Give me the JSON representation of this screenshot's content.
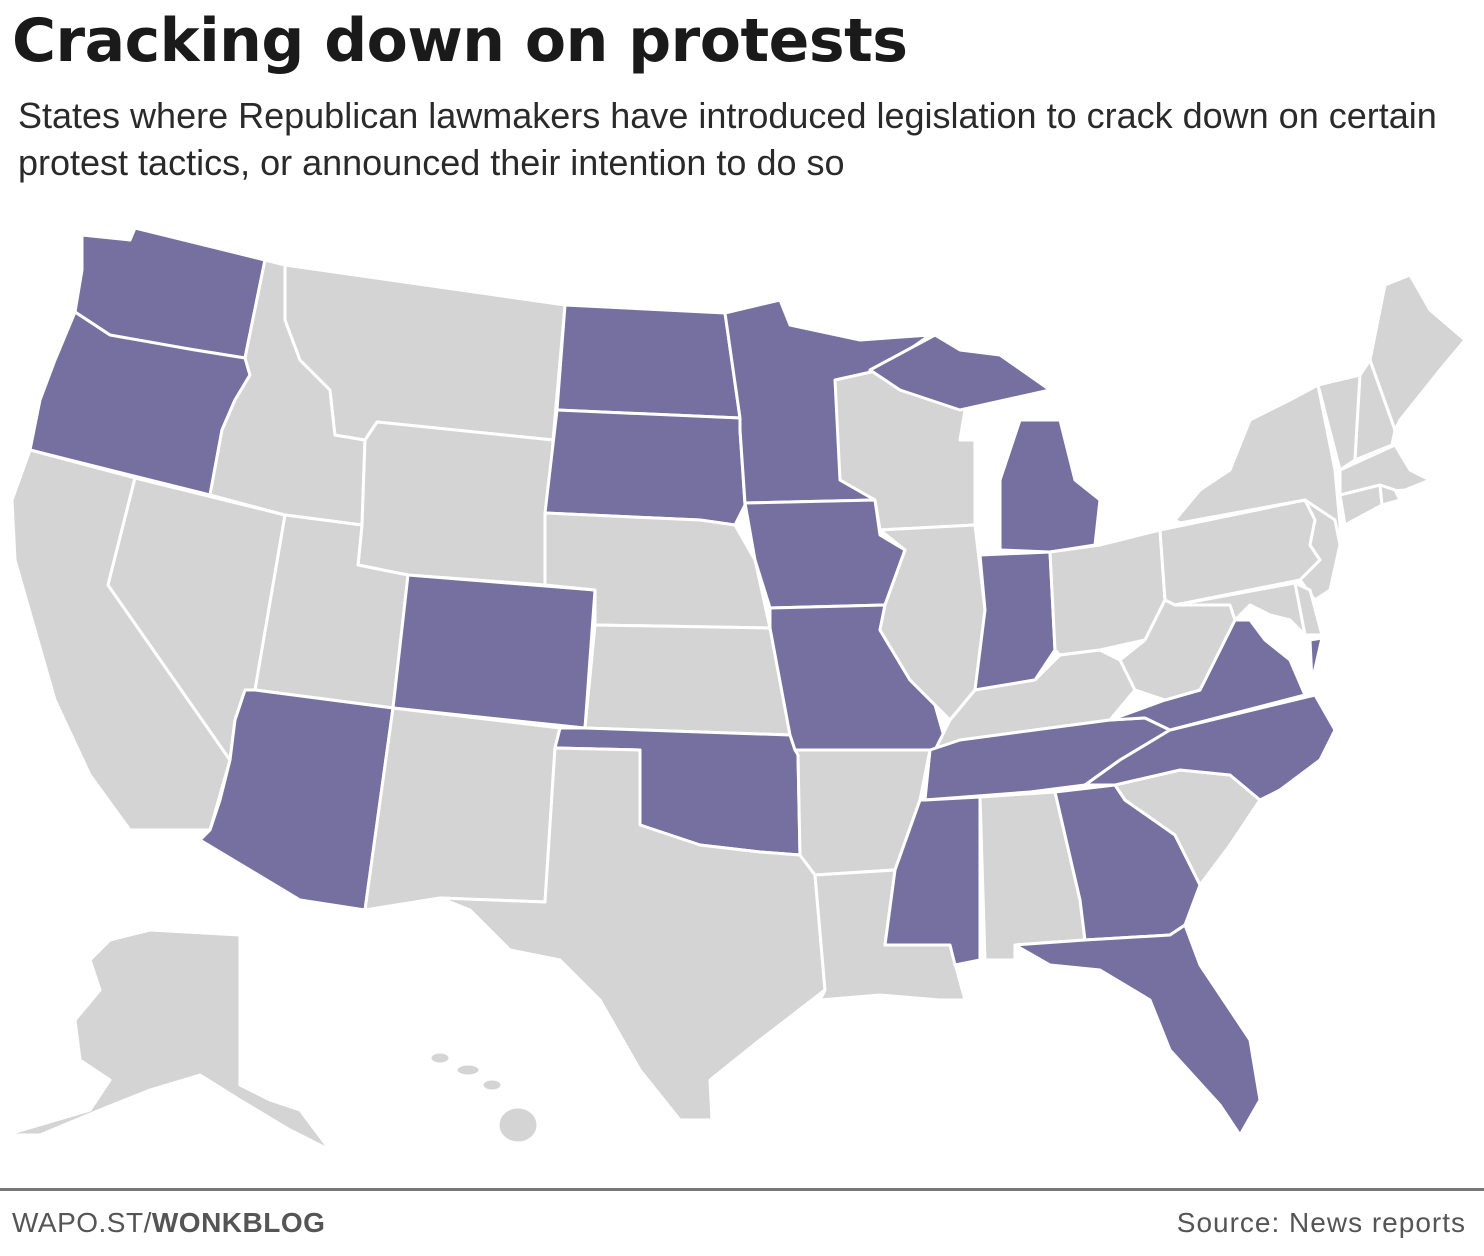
{
  "header": {
    "title": "Cracking down on protests",
    "subtitle": "States where Republican lawmakers have introduced legislation to crack down on certain protest tactics, or announced their intention to do so"
  },
  "colors": {
    "highlighted": "#75709f",
    "other": "#d4d4d4"
  },
  "states": [
    {
      "code": "WA",
      "highlighted": true
    },
    {
      "code": "OR",
      "highlighted": true
    },
    {
      "code": "CA",
      "highlighted": false
    },
    {
      "code": "NV",
      "highlighted": false
    },
    {
      "code": "ID",
      "highlighted": false
    },
    {
      "code": "MT",
      "highlighted": false
    },
    {
      "code": "WY",
      "highlighted": false
    },
    {
      "code": "UT",
      "highlighted": false
    },
    {
      "code": "CO",
      "highlighted": true
    },
    {
      "code": "AZ",
      "highlighted": true
    },
    {
      "code": "NM",
      "highlighted": false
    },
    {
      "code": "ND",
      "highlighted": true
    },
    {
      "code": "SD",
      "highlighted": true
    },
    {
      "code": "NE",
      "highlighted": false
    },
    {
      "code": "KS",
      "highlighted": false
    },
    {
      "code": "OK",
      "highlighted": true
    },
    {
      "code": "TX",
      "highlighted": false
    },
    {
      "code": "MN",
      "highlighted": true
    },
    {
      "code": "IA",
      "highlighted": true
    },
    {
      "code": "MO",
      "highlighted": true
    },
    {
      "code": "AR",
      "highlighted": false
    },
    {
      "code": "LA",
      "highlighted": false
    },
    {
      "code": "WI",
      "highlighted": false
    },
    {
      "code": "IL",
      "highlighted": false
    },
    {
      "code": "MI",
      "highlighted": true
    },
    {
      "code": "IN",
      "highlighted": true
    },
    {
      "code": "OH",
      "highlighted": false
    },
    {
      "code": "KY",
      "highlighted": false
    },
    {
      "code": "TN",
      "highlighted": true
    },
    {
      "code": "MS",
      "highlighted": true
    },
    {
      "code": "AL",
      "highlighted": false
    },
    {
      "code": "GA",
      "highlighted": true
    },
    {
      "code": "FL",
      "highlighted": true
    },
    {
      "code": "SC",
      "highlighted": false
    },
    {
      "code": "NC",
      "highlighted": true
    },
    {
      "code": "VA",
      "highlighted": true
    },
    {
      "code": "WV",
      "highlighted": false
    },
    {
      "code": "PA",
      "highlighted": false
    },
    {
      "code": "NY",
      "highlighted": false
    },
    {
      "code": "NJ",
      "highlighted": false
    },
    {
      "code": "MD",
      "highlighted": false
    },
    {
      "code": "DE",
      "highlighted": false
    },
    {
      "code": "VT",
      "highlighted": false
    },
    {
      "code": "NH",
      "highlighted": false
    },
    {
      "code": "ME",
      "highlighted": false
    },
    {
      "code": "MA",
      "highlighted": false
    },
    {
      "code": "CT",
      "highlighted": false
    },
    {
      "code": "RI",
      "highlighted": false
    },
    {
      "code": "AK",
      "highlighted": false
    },
    {
      "code": "HI",
      "highlighted": false
    }
  ],
  "footer": {
    "credit_prefix": "WAPO.ST/",
    "credit_bold": "WONKBLOG",
    "source": "Source: News reports"
  }
}
